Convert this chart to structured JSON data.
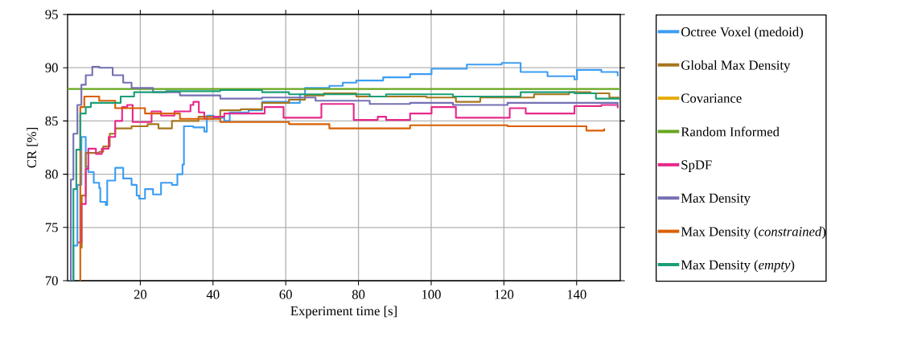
{
  "chart_data": {
    "type": "step",
    "xlabel": "Experiment time [s]",
    "ylabel": "CR [%]",
    "xlim": [
      0,
      152
    ],
    "ylim": [
      70,
      95
    ],
    "xticks": [
      20,
      40,
      60,
      80,
      100,
      120,
      140
    ],
    "yticks": [
      70,
      75,
      80,
      85,
      90,
      95
    ],
    "grid": true,
    "legend": "right",
    "line_style": "solid",
    "marker": "none",
    "series": [
      {
        "name": "Octree Voxel (medoid)",
        "color": "#3d9df3",
        "x": [
          1.6,
          1.6,
          2.7,
          3.8,
          4.7,
          5.0,
          5.7,
          7.2,
          8.7,
          9.0,
          10.5,
          10.9,
          13.1,
          15.3,
          17.6,
          19.0,
          19.7,
          21.3,
          23.5,
          25.7,
          28.7,
          30.2,
          31.6,
          32.0,
          34.6,
          37.6,
          38.3,
          40.2,
          43.1,
          44.6,
          49.8,
          53.5,
          60.9,
          63.9,
          65.3,
          72.0,
          75.7,
          79.4,
          86.8,
          94.2,
          100.1,
          109.8,
          119.4,
          124.6,
          132.0,
          139.4,
          140.1,
          146.8,
          151.3
        ],
        "values": [
          70,
          73.3,
          79.0,
          83.5,
          83.5,
          80.7,
          80.2,
          79.2,
          78.7,
          77.4,
          77.1,
          79.4,
          80.6,
          79.6,
          79.0,
          78.0,
          77.7,
          78.6,
          78.1,
          79.2,
          79.0,
          80.0,
          80.9,
          84.5,
          84.4,
          84.0,
          85.5,
          85.3,
          85.0,
          85.8,
          86.0,
          86.8,
          86.7,
          87.5,
          88.1,
          88.3,
          88.6,
          88.8,
          89.1,
          89.4,
          89.9,
          90.3,
          90.45,
          89.6,
          89.2,
          88.9,
          89.8,
          89.6,
          89.2
        ]
      },
      {
        "name": "Global Max Density",
        "color": "#a6761d",
        "x": [
          3.8,
          3.9,
          5.0,
          8.7,
          9.8,
          11.6,
          13.1,
          16.8,
          17.6,
          22.0,
          25.0,
          28.7,
          36.0,
          42.0,
          47.6,
          53.5,
          60.9,
          65.3,
          70.5,
          79.4,
          87.6,
          98.7,
          106.8,
          113.5,
          128.3,
          137.9,
          143.8,
          149.0,
          152.0
        ],
        "values": [
          73.1,
          78.0,
          82.0,
          82.1,
          82.6,
          83.8,
          84.3,
          84.3,
          84.5,
          84.7,
          84.3,
          85.0,
          85.4,
          86.0,
          86.1,
          86.7,
          87.0,
          87.4,
          87.6,
          87.3,
          87.3,
          87.2,
          86.8,
          87.2,
          87.5,
          87.7,
          87.6,
          87.2,
          87.2
        ]
      },
      {
        "name": "Covariance",
        "color": "#e6ab02",
        "values": [
          null
        ]
      },
      {
        "name": "Random Informed",
        "color": "#66a61e",
        "x": [
          0,
          152
        ],
        "values": [
          88,
          88
        ]
      },
      {
        "name": "SpDF",
        "color": "#e7298a",
        "x": [
          2.9,
          3.8,
          5.0,
          5.7,
          7.8,
          9.4,
          11.3,
          13.1,
          15.0,
          16.4,
          17.9,
          19.7,
          23.1,
          25.7,
          29.4,
          33.8,
          34.6,
          36.1,
          37.6,
          40.0,
          43.1,
          54.2,
          59.4,
          69.8,
          78.7,
          85.3,
          87.6,
          94.2,
          100.1,
          106.8,
          121.6,
          126.0,
          139.4,
          146.8,
          151.3
        ],
        "values": [
          73.6,
          77.2,
          80.5,
          82.4,
          81.9,
          82.4,
          83.5,
          85.0,
          86.3,
          86.5,
          84.9,
          84.9,
          85.9,
          85.5,
          85.9,
          86.5,
          86.8,
          85.8,
          85.2,
          85.4,
          85.7,
          86.3,
          85.3,
          86.6,
          85.1,
          85.4,
          85.1,
          85.7,
          86.3,
          85.3,
          86.2,
          85.7,
          86.4,
          86.5,
          86.2
        ]
      },
      {
        "name": "Max Density",
        "color": "#7570b3",
        "x": [
          0.15,
          0.9,
          1.6,
          2.7,
          3.8,
          5.0,
          6.8,
          8.7,
          12.4,
          15.3,
          17.6,
          23.5,
          30.9,
          42.0,
          53.5,
          68.2,
          83.1,
          94.2,
          106.0,
          121.0,
          143.0,
          151.3
        ],
        "values": [
          70,
          79.5,
          83.8,
          86.5,
          88.4,
          89.3,
          90.1,
          90.0,
          89.3,
          88.6,
          88.1,
          87.7,
          87.4,
          87.1,
          87.2,
          86.9,
          86.6,
          86.7,
          86.5,
          86.7,
          86.7,
          86.4
        ]
      },
      {
        "name": "Max Density (*constrained*)",
        "color": "#d95f02",
        "x": [
          3.4,
          3.5,
          4.6,
          8.7,
          13.1,
          21.3,
          30.9,
          42.0,
          60.9,
          72.0,
          94.2,
          121.0,
          139.4,
          142.7,
          147.6
        ],
        "values": [
          70,
          86.3,
          87.3,
          86.9,
          86.2,
          85.7,
          85.2,
          84.9,
          84.7,
          84.3,
          84.6,
          84.5,
          84.5,
          84.1,
          84.3
        ]
      },
      {
        "name": "Max Density (*empty*)",
        "color": "#1b9e77",
        "x": [
          1.2,
          1.6,
          2.4,
          3.5,
          5.0,
          6.4,
          10.2,
          14.6,
          18.3,
          27.1,
          42.0,
          53.5,
          60.9,
          83.1,
          87.6,
          106.0,
          124.6,
          139.4,
          145.3,
          152.0
        ],
        "values": [
          70,
          78.6,
          82.3,
          85.7,
          86.3,
          86.7,
          86.7,
          87.3,
          87.7,
          87.8,
          87.9,
          87.7,
          87.5,
          87.3,
          87.5,
          87.3,
          87.7,
          87.6,
          87.1,
          87.1
        ]
      }
    ]
  }
}
